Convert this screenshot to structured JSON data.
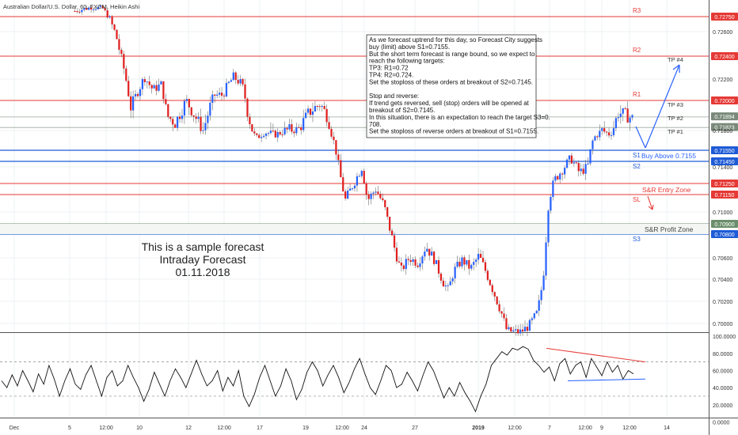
{
  "header": {
    "symbol": "Australian Dollar/U.S. Dollar, 60, FXCM, Heikin Ashi"
  },
  "colors": {
    "up": "#2962ff",
    "down": "#e02020",
    "resistance": "#e53935",
    "support": "#1e5bd6",
    "profit_zone": "#6b8e6b",
    "wick": "#6e6e6e"
  },
  "chart_data": [
    {
      "type": "candlestick",
      "title": "Australian Dollar/U.S. Dollar, 60, FXCM, Heikin Ashi",
      "ylim": [
        0.6988,
        0.7305
      ],
      "y_ticks": [
        "0.72600",
        "0.72200",
        "0.71800",
        "0.71400",
        "0.71000",
        "0.70600",
        "0.70400",
        "0.70200",
        "0.70000"
      ],
      "y_tick_values": [
        0.726,
        0.722,
        0.718,
        0.714,
        0.71,
        0.706,
        0.704,
        0.702,
        0.7
      ],
      "x_ticks": [
        "Dec",
        "5",
        "12:00",
        "10",
        "12",
        "12:00",
        "17",
        "19",
        "12:00",
        "24",
        "27",
        "2019",
        "12:00",
        "7",
        "12:00",
        "9",
        "12:00",
        "14"
      ],
      "close_path": [
        [
          0,
          0.7285
        ],
        [
          0.03,
          0.7292
        ],
        [
          0.05,
          0.729
        ],
        [
          0.075,
          0.7255
        ],
        [
          0.09,
          0.7225
        ],
        [
          0.1,
          0.7195
        ],
        [
          0.11,
          0.7205
        ],
        [
          0.125,
          0.7222
        ],
        [
          0.14,
          0.721
        ],
        [
          0.155,
          0.7215
        ],
        [
          0.165,
          0.719
        ],
        [
          0.18,
          0.7185
        ],
        [
          0.2,
          0.72
        ],
        [
          0.215,
          0.719
        ],
        [
          0.23,
          0.718
        ],
        [
          0.25,
          0.7205
        ],
        [
          0.265,
          0.7205
        ],
        [
          0.275,
          0.7215
        ],
        [
          0.285,
          0.7222
        ],
        [
          0.3,
          0.7215
        ],
        [
          0.31,
          0.7192
        ],
        [
          0.325,
          0.717
        ],
        [
          0.34,
          0.7178
        ],
        [
          0.36,
          0.7175
        ],
        [
          0.38,
          0.718
        ],
        [
          0.4,
          0.718
        ],
        [
          0.42,
          0.7192
        ],
        [
          0.44,
          0.7198
        ],
        [
          0.455,
          0.7188
        ],
        [
          0.465,
          0.7165
        ],
        [
          0.475,
          0.7135
        ],
        [
          0.485,
          0.711
        ],
        [
          0.5,
          0.7125
        ],
        [
          0.515,
          0.714
        ],
        [
          0.525,
          0.711
        ],
        [
          0.54,
          0.712
        ],
        [
          0.555,
          0.7105
        ],
        [
          0.565,
          0.7085
        ],
        [
          0.575,
          0.7065
        ],
        [
          0.585,
          0.7048
        ],
        [
          0.6,
          0.706
        ],
        [
          0.615,
          0.7055
        ],
        [
          0.63,
          0.707
        ],
        [
          0.645,
          0.7058
        ],
        [
          0.66,
          0.7038
        ],
        [
          0.67,
          0.703
        ],
        [
          0.68,
          0.7048
        ],
        [
          0.695,
          0.7058
        ],
        [
          0.71,
          0.705
        ],
        [
          0.725,
          0.7062
        ],
        [
          0.735,
          0.705
        ],
        [
          0.75,
          0.703
        ],
        [
          0.765,
          0.701
        ],
        [
          0.775,
          0.6993
        ],
        [
          0.79,
          0.6992
        ],
        [
          0.8,
          0.6992
        ],
        [
          0.815,
          0.6998
        ],
        [
          0.83,
          0.701
        ],
        [
          0.84,
          0.704
        ],
        [
          0.85,
          0.711
        ],
        [
          0.86,
          0.7128
        ],
        [
          0.875,
          0.7138
        ],
        [
          0.89,
          0.7148
        ],
        [
          0.905,
          0.7135
        ],
        [
          0.92,
          0.714
        ],
        [
          0.93,
          0.717
        ],
        [
          0.945,
          0.718
        ],
        [
          0.96,
          0.7175
        ],
        [
          0.975,
          0.7192
        ],
        [
          0.99,
          0.719
        ],
        [
          1,
          0.7188
        ]
      ],
      "levels": [
        {
          "label": "R3",
          "value": 0.7275,
          "price": "0.72750",
          "kind": "resistance"
        },
        {
          "label": "R2",
          "value": 0.724,
          "price": "0.72400",
          "kind": "resistance"
        },
        {
          "label": "R1",
          "value": 0.72,
          "price": "0.72000",
          "kind": "resistance"
        },
        {
          "label": "S1",
          "value": 0.7155,
          "price": "0.71550",
          "kind": "support"
        },
        {
          "label": "S2",
          "value": 0.7145,
          "price": "0.71450",
          "kind": "support"
        },
        {
          "label": "",
          "value": 0.7125,
          "price": "0.71250",
          "kind": "resistance"
        },
        {
          "label": "SL",
          "value": 0.7115,
          "price": "0.71150",
          "kind": "resistance"
        },
        {
          "label": "",
          "value": 0.709,
          "price": "0.70900",
          "kind": "profit"
        },
        {
          "label": "S3",
          "value": 0.708,
          "price": "0.70800",
          "kind": "support"
        }
      ],
      "targets": [
        {
          "label": "TP #4",
          "value": 0.724
        },
        {
          "label": "TP #3",
          "value": 0.72
        },
        {
          "label": "TP #2",
          "value": 0.7189
        },
        {
          "label": "TP #1",
          "value": 0.7182
        }
      ],
      "price_tags": [
        {
          "price": "0.71894",
          "value": 0.71894,
          "color": "#7a8a7a"
        },
        {
          "price": "0.71823",
          "value": 0.71823,
          "color": "#7a8a7a"
        }
      ]
    },
    {
      "type": "line",
      "title": "",
      "ylim": [
        5,
        102
      ],
      "y_ticks": [
        "100.0000",
        "80.0000",
        "60.0000",
        "40.0000",
        "20.0000",
        "0.0000"
      ],
      "y_tick_values": [
        100,
        80,
        60,
        40,
        20,
        0
      ],
      "levels": [
        70,
        30
      ],
      "values": [
        48,
        40,
        55,
        42,
        60,
        48,
        35,
        56,
        44,
        66,
        50,
        30,
        48,
        62,
        44,
        38,
        55,
        66,
        48,
        30,
        52,
        60,
        42,
        48,
        66,
        52,
        40,
        24,
        38,
        58,
        44,
        30,
        48,
        62,
        52,
        40,
        56,
        72,
        56,
        42,
        48,
        60,
        36,
        52,
        42,
        60,
        30,
        18,
        32,
        52,
        66,
        48,
        30,
        42,
        62,
        48,
        26,
        38,
        58,
        70,
        60,
        42,
        55,
        66,
        52,
        34,
        46,
        62,
        74,
        56,
        40,
        32,
        48,
        66,
        60,
        40,
        44,
        58,
        48,
        36,
        54,
        70,
        60,
        44,
        28,
        40,
        30,
        46,
        34,
        24,
        12,
        30,
        44,
        66,
        74,
        82,
        78,
        86,
        84,
        88,
        85,
        72,
        66,
        58,
        64,
        48,
        68,
        74,
        56,
        66,
        70,
        52,
        74,
        64,
        54,
        70,
        58,
        66,
        50,
        60,
        56
      ]
    }
  ],
  "annotation": {
    "lines": [
      "As we forecast uptrend for this day, so Forecast City suggests",
      "buy (limit) above S1=0.7155.",
      "But the short term forecast is range bound, so we expect to",
      "reach the following targets:",
      "TP3: R1=0.72",
      "TP4: R2=0.724.",
      "Set the stoploss of these orders at breakout of S2=0.7145.",
      "",
      "Stop and reverse:",
      "If trend gets reversed, sell (stop) orders will be opened at",
      "breakout of S2=0.7145.",
      "In this situation, there is an expectation to reach the target S3=0.",
      "708.",
      "Set the stoploss of reverse orders at breakout of S1=0.7155."
    ]
  },
  "zone_labels": {
    "buy_above": "Buy Above 0.7155",
    "entry_zone": "S&R Entry Zone",
    "profit_zone": "S&R Profit Zone"
  },
  "sample_note": {
    "line1": "This is a sample forecast",
    "line2": "Intraday Forecast",
    "line3": "01.11.2018"
  }
}
